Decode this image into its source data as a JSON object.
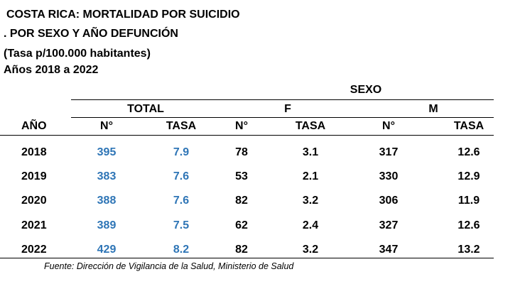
{
  "title": {
    "line1": "COSTA RICA: MORTALIDAD POR SUICIDIO",
    "line2": ". POR SEXO Y AÑO DEFUNCIÓN",
    "line3": "(Tasa p/100.000 habitantes)",
    "line4": "Años 2018 a 2022"
  },
  "table": {
    "group_sexo": "SEXO",
    "group_total": "TOTAL",
    "group_f": "F",
    "group_m": "M",
    "col_year": "AÑO",
    "col_n": "N°",
    "col_tasa": "TASA",
    "rows": [
      {
        "year": "2018",
        "total_n": "395",
        "total_tasa": "7.9",
        "f_n": "78",
        "f_tasa": "3.1",
        "m_n": "317",
        "m_tasa": "12.6"
      },
      {
        "year": "2019",
        "total_n": "383",
        "total_tasa": "7.6",
        "f_n": "53",
        "f_tasa": "2.1",
        "m_n": "330",
        "m_tasa": "12.9"
      },
      {
        "year": "2020",
        "total_n": "388",
        "total_tasa": "7.6",
        "f_n": "82",
        "f_tasa": "3.2",
        "m_n": "306",
        "m_tasa": "11.9"
      },
      {
        "year": "2021",
        "total_n": "389",
        "total_tasa": "7.5",
        "f_n": "62",
        "f_tasa": "2.4",
        "m_n": "327",
        "m_tasa": "12.6"
      },
      {
        "year": "2022",
        "total_n": "429",
        "total_tasa": "8.2",
        "f_n": "82",
        "f_tasa": "3.2",
        "m_n": "347",
        "m_tasa": "13.2"
      }
    ]
  },
  "source": "Fuente: Dirección de Vigilancia de la Salud, Ministerio de Salud",
  "colors": {
    "total_values": "#2e75b6",
    "text": "#000000"
  }
}
